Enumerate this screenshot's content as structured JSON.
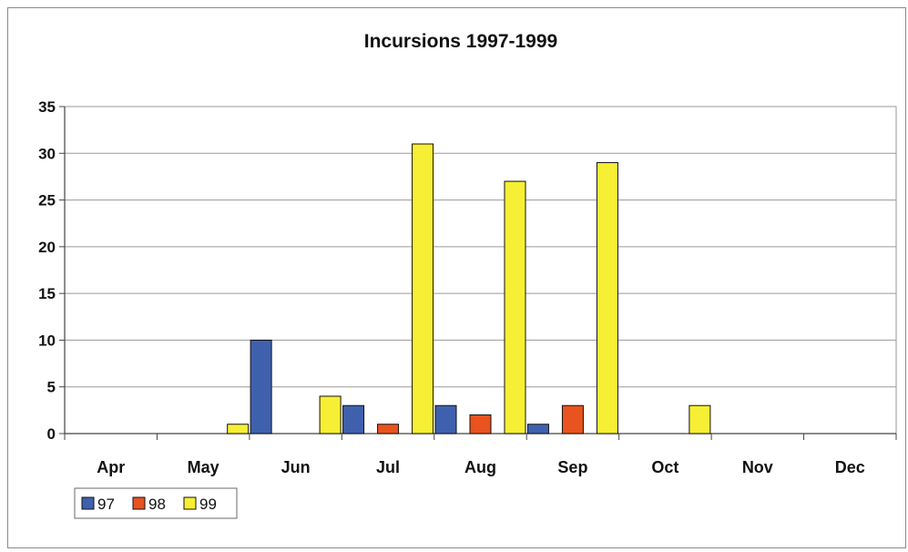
{
  "chart_data": {
    "type": "bar",
    "title": "Incursions 1997-1999",
    "xlabel": "",
    "ylabel": "",
    "categories": [
      "Apr",
      "May",
      "Jun",
      "Jul",
      "Aug",
      "Sep",
      "Oct",
      "Nov",
      "Dec"
    ],
    "series": [
      {
        "name": "97",
        "color": "#3f61ad",
        "values": [
          0,
          0,
          10,
          3,
          3,
          1,
          0,
          0,
          0
        ]
      },
      {
        "name": "98",
        "color": "#e8531f",
        "values": [
          0,
          0,
          0,
          1,
          2,
          3,
          0,
          0,
          0
        ]
      },
      {
        "name": "99",
        "color": "#f7ef33",
        "values": [
          0,
          1,
          4,
          31,
          27,
          29,
          3,
          0,
          0
        ]
      }
    ],
    "ylim": [
      0,
      35
    ],
    "yticks": [
      "0",
      "5",
      "10",
      "15",
      "20",
      "25",
      "30",
      "35"
    ],
    "grid": true,
    "legend_position": "bottom-left"
  }
}
